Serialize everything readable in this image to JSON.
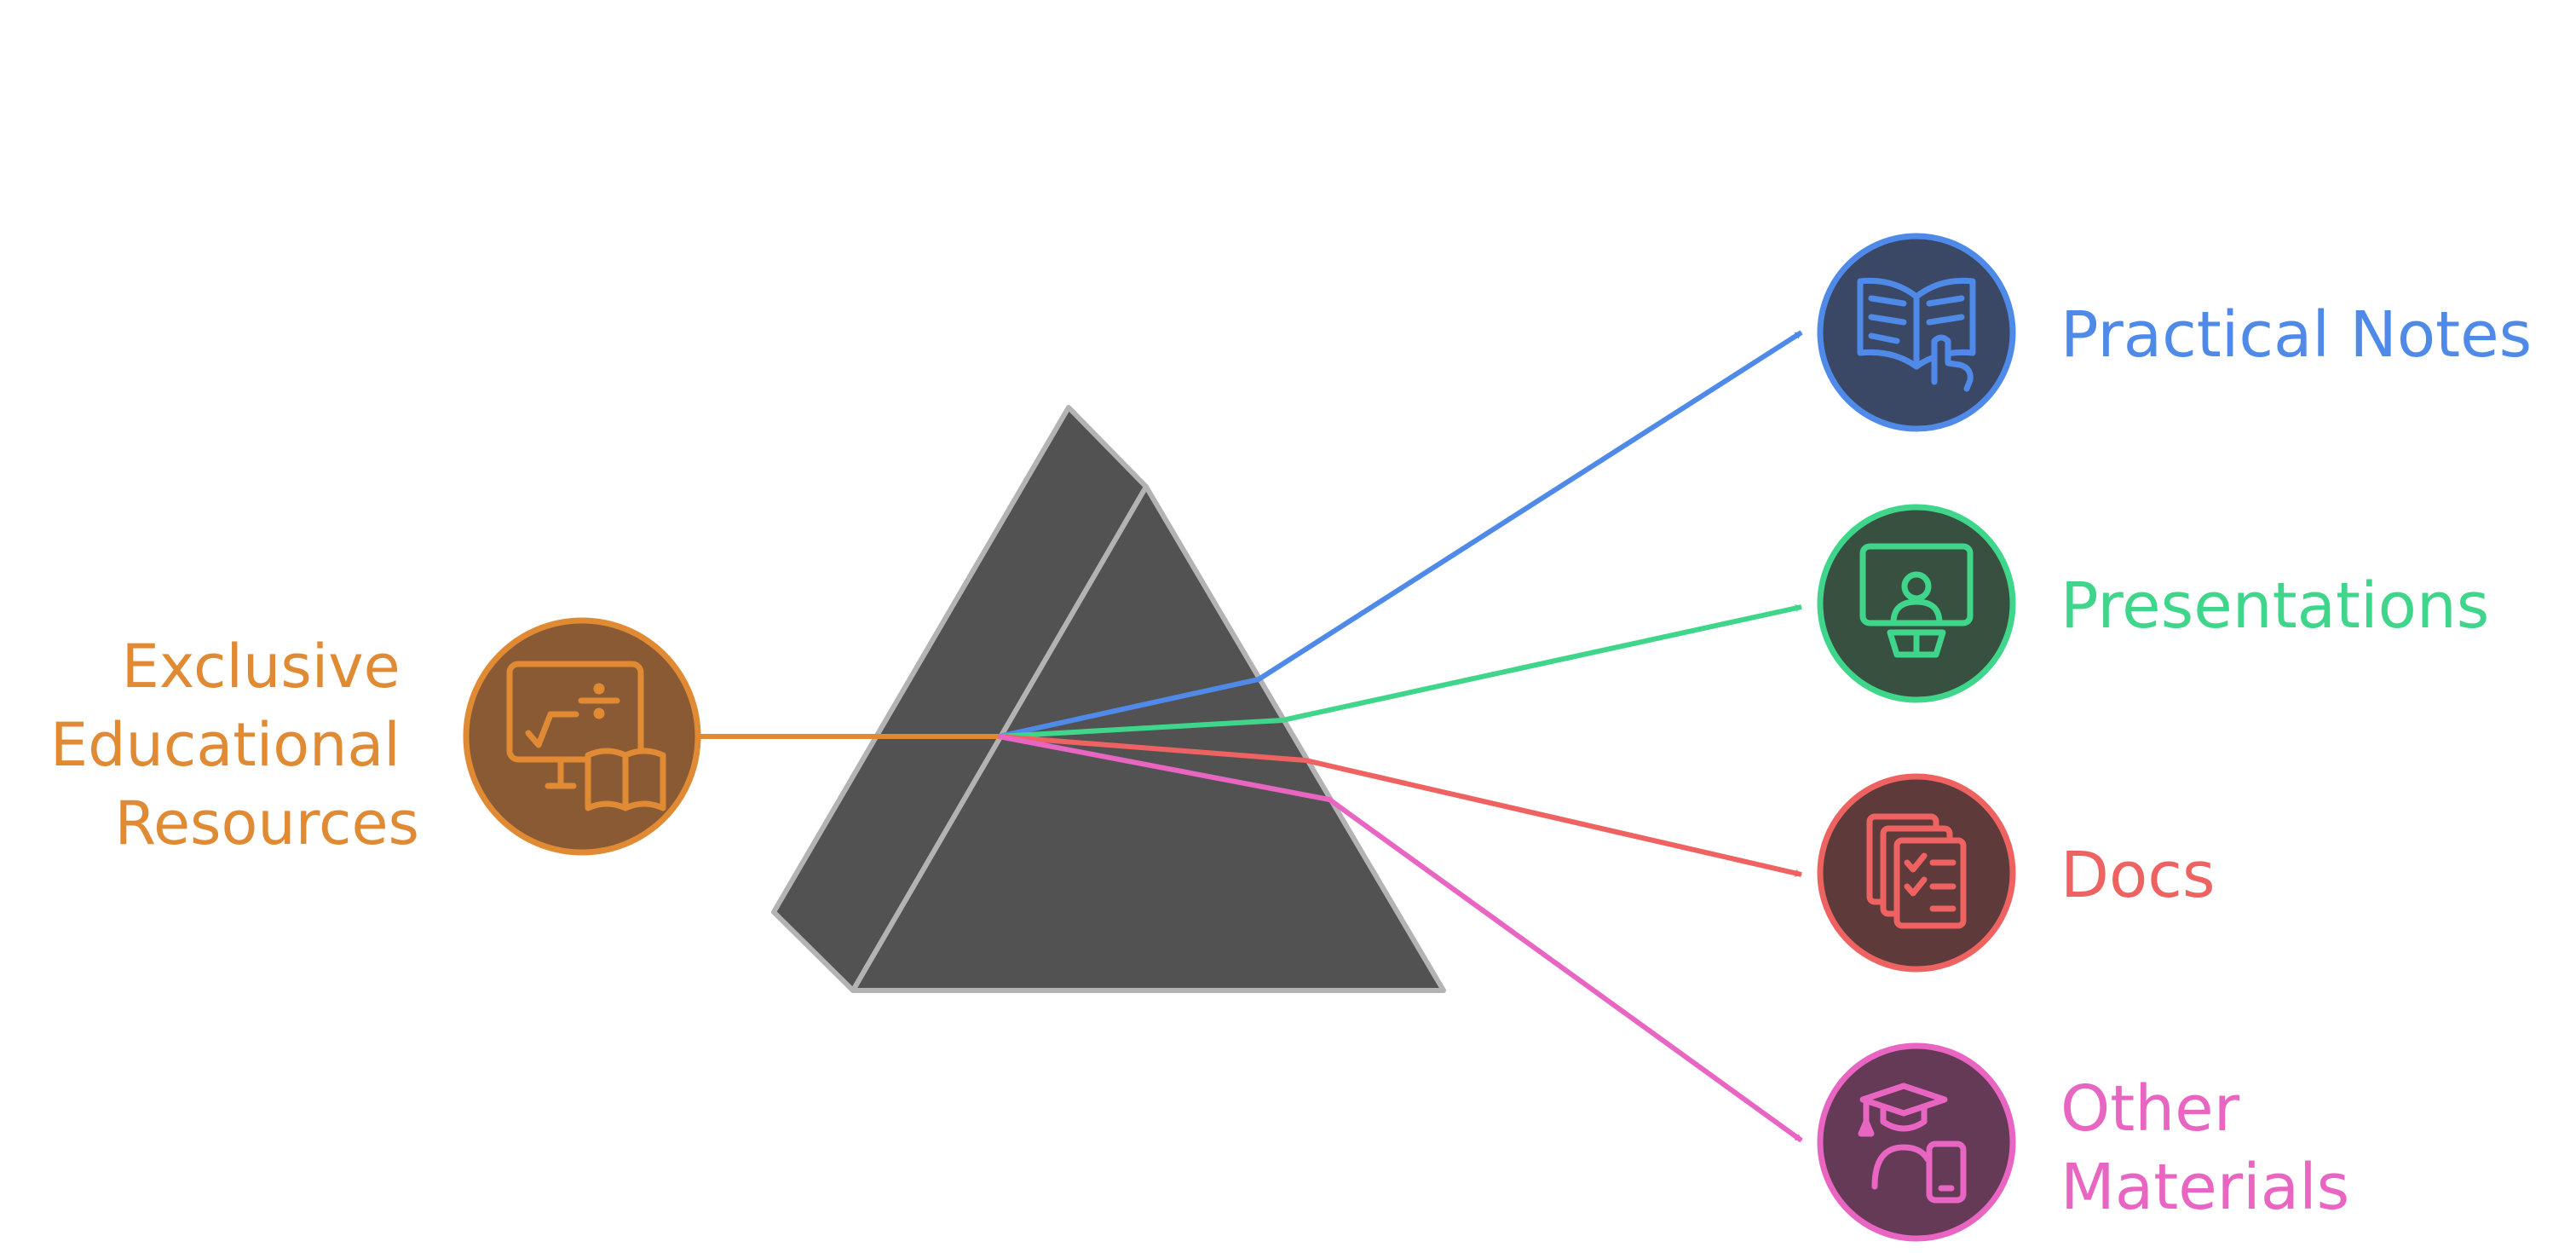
{
  "source": {
    "label_lines": [
      "Exclusive",
      "Educational",
      "Resources"
    ],
    "color": "#e08a34",
    "fill": "#8a5a35",
    "icon": "math-and-book-icon"
  },
  "prism": {
    "fill": "#525252",
    "edge": "#b3b3b3"
  },
  "outputs": [
    {
      "label_lines": [
        "Practical Notes"
      ],
      "color": "#4f8ae8",
      "fill": "#3a4865",
      "icon": "open-book-pointer-icon"
    },
    {
      "label_lines": [
        "Presentations"
      ],
      "color": "#3fd68c",
      "fill": "#37503f",
      "icon": "presenter-board-icon"
    },
    {
      "label_lines": [
        "Docs"
      ],
      "color": "#ef6262",
      "fill": "#5e3a3a",
      "icon": "checklist-documents-icon"
    },
    {
      "label_lines": [
        "Other",
        "Materials"
      ],
      "color": "#e865c2",
      "fill": "#653a56",
      "icon": "graduate-phone-icon"
    }
  ]
}
